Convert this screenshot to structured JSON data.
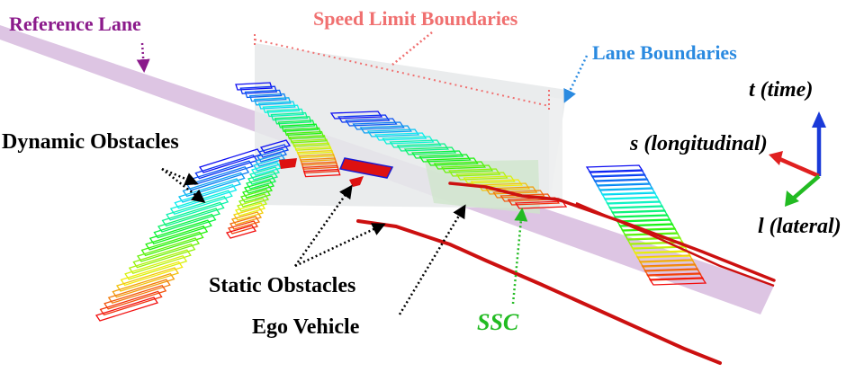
{
  "labels": {
    "reference_lane": "Reference Lane",
    "speed_limit_boundaries": "Speed Limit Boundaries",
    "lane_boundaries": "Lane Boundaries",
    "dynamic_obstacles": "Dynamic Obstacles",
    "static_obstacles": "Static Obstacles",
    "ego_vehicle": "Ego Vehicle",
    "ssc": "SSC"
  },
  "axes": {
    "t": "t (time)",
    "s": "s (longitudinal)",
    "l": "l (lateral)"
  },
  "colors": {
    "reference_lane": "#8b1a8b",
    "speed_limit": "#f07070",
    "lane_boundary": "#2a8ae0",
    "ssc": "#22bb22",
    "text_dark": "#000000",
    "axis_t": "#1a3ad8",
    "axis_s": "#e02020",
    "axis_l": "#22bb22",
    "ego_path": "#cc1010"
  }
}
